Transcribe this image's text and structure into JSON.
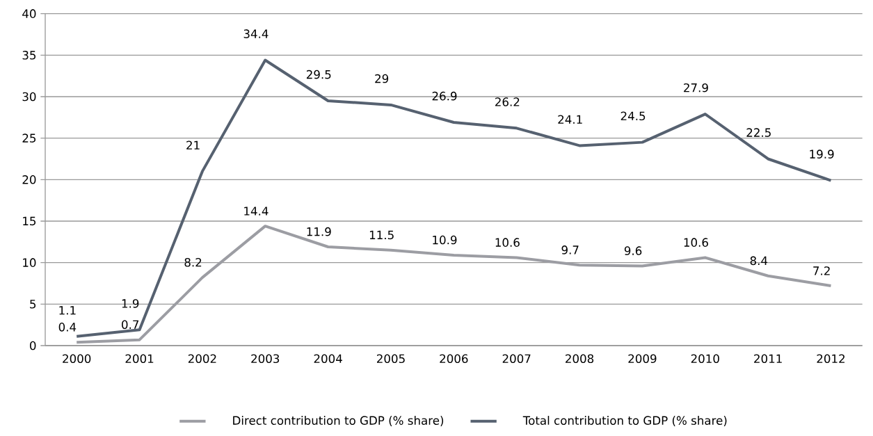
{
  "chart_data": {
    "type": "line",
    "categories": [
      "2000",
      "2001",
      "2002",
      "2003",
      "2004",
      "2005",
      "2006",
      "2007",
      "2008",
      "2009",
      "2010",
      "2011",
      "2012"
    ],
    "series": [
      {
        "name": "Direct contribution to GDP (% share)",
        "color": "#9c9da3",
        "values": [
          0.4,
          0.7,
          8.2,
          14.4,
          11.9,
          11.5,
          10.9,
          10.6,
          9.7,
          9.6,
          10.6,
          8.4,
          7.2
        ]
      },
      {
        "name": "Total contribution to GDP (% share)",
        "color": "#566170",
        "values": [
          1.1,
          1.9,
          21,
          34.4,
          29.5,
          29,
          26.9,
          26.2,
          24.1,
          24.5,
          27.9,
          22.5,
          19.9
        ]
      }
    ],
    "ylim": [
      0,
      40
    ],
    "yticks": [
      0,
      5,
      10,
      15,
      20,
      25,
      30,
      35,
      40
    ],
    "grid": "y",
    "legend": "bottom",
    "marker": "none",
    "line_style": "solid",
    "data_labels": true
  }
}
